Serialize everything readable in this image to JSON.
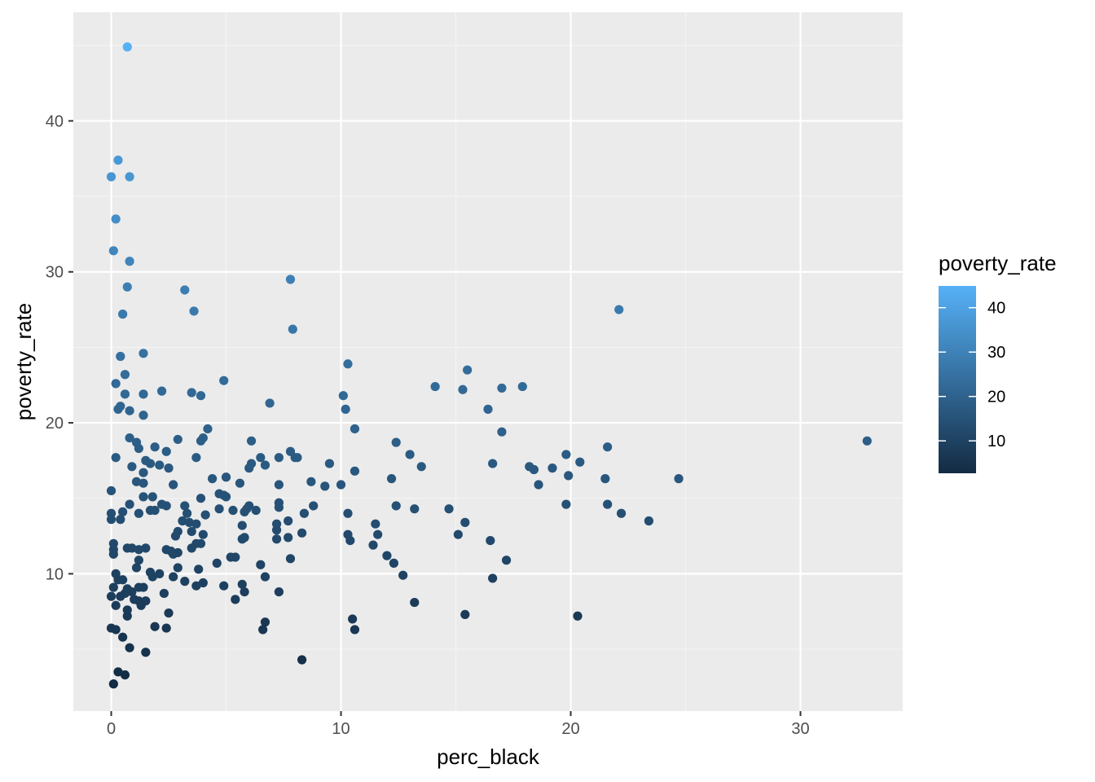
{
  "chart_data": {
    "type": "scatter",
    "xlabel": "perc_black",
    "ylabel": "poverty_rate",
    "xlim": [
      -1.65,
      34.45
    ],
    "ylim": [
      0.9,
      47.2
    ],
    "x_ticks": [
      0,
      10,
      20,
      30
    ],
    "y_ticks": [
      10,
      20,
      30,
      40
    ],
    "x_tick_labels": [
      "0",
      "10",
      "20",
      "30"
    ],
    "y_tick_labels": [
      "10",
      "20",
      "30",
      "40"
    ],
    "grid": true,
    "legend": {
      "title": "poverty_rate",
      "position": "right",
      "color_scale": {
        "low": "#132b43",
        "high": "#56b1f7",
        "min": 2.7,
        "max": 44.9
      },
      "ticks": [
        10,
        20,
        30,
        40
      ],
      "tick_labels": [
        "10",
        "20",
        "30",
        "40"
      ]
    },
    "colors": {
      "panel": "#ebebeb",
      "grid_major": "#ffffff",
      "grid_minor": "#f4f4f4"
    },
    "points": [
      [
        0.7,
        44.9
      ],
      [
        0.3,
        37.4
      ],
      [
        0.0,
        36.3
      ],
      [
        0.8,
        36.3
      ],
      [
        0.2,
        33.5
      ],
      [
        0.1,
        31.4
      ],
      [
        0.8,
        30.7
      ],
      [
        0.7,
        29.0
      ],
      [
        0.5,
        27.2
      ],
      [
        0.4,
        24.4
      ],
      [
        0.6,
        23.2
      ],
      [
        0.2,
        22.6
      ],
      [
        0.6,
        21.9
      ],
      [
        0.4,
        21.1
      ],
      [
        0.3,
        20.9
      ],
      [
        0.8,
        20.8
      ],
      [
        1.4,
        24.6
      ],
      [
        1.4,
        21.9
      ],
      [
        1.4,
        20.5
      ],
      [
        0.8,
        19.0
      ],
      [
        1.1,
        18.7
      ],
      [
        1.2,
        18.3
      ],
      [
        0.2,
        17.7
      ],
      [
        0.9,
        17.1
      ],
      [
        1.5,
        17.5
      ],
      [
        1.7,
        17.3
      ],
      [
        1.4,
        16.7
      ],
      [
        1.1,
        16.1
      ],
      [
        1.4,
        16.0
      ],
      [
        0.0,
        15.5
      ],
      [
        0.8,
        14.6
      ],
      [
        1.4,
        15.1
      ],
      [
        1.8,
        15.1
      ],
      [
        1.7,
        14.2
      ],
      [
        1.9,
        14.2
      ],
      [
        1.2,
        14.0
      ],
      [
        0.0,
        14.0
      ],
      [
        0.5,
        14.1
      ],
      [
        0.0,
        13.6
      ],
      [
        0.4,
        13.6
      ],
      [
        0.1,
        12.0
      ],
      [
        0.1,
        11.6
      ],
      [
        0.1,
        11.3
      ],
      [
        0.7,
        11.7
      ],
      [
        0.9,
        11.7
      ],
      [
        1.2,
        11.6
      ],
      [
        1.5,
        11.7
      ],
      [
        1.2,
        10.9
      ],
      [
        1.1,
        10.4
      ],
      [
        1.7,
        10.1
      ],
      [
        0.2,
        10.0
      ],
      [
        0.3,
        9.6
      ],
      [
        0.1,
        9.1
      ],
      [
        0.5,
        9.6
      ],
      [
        1.2,
        9.1
      ],
      [
        1.4,
        9.1
      ],
      [
        0.7,
        9.0
      ],
      [
        0.9,
        8.8
      ],
      [
        0.6,
        8.7
      ],
      [
        0.0,
        8.5
      ],
      [
        0.4,
        8.5
      ],
      [
        1.0,
        8.3
      ],
      [
        1.2,
        8.2
      ],
      [
        1.5,
        8.2
      ],
      [
        1.3,
        7.9
      ],
      [
        0.2,
        7.9
      ],
      [
        0.7,
        7.6
      ],
      [
        0.7,
        7.2
      ],
      [
        0.0,
        6.4
      ],
      [
        0.2,
        6.3
      ],
      [
        0.5,
        5.8
      ],
      [
        0.8,
        5.1
      ],
      [
        1.5,
        4.8
      ],
      [
        0.3,
        3.5
      ],
      [
        0.6,
        3.3
      ],
      [
        0.1,
        2.7
      ],
      [
        3.2,
        28.8
      ],
      [
        3.6,
        27.4
      ],
      [
        3.5,
        22.0
      ],
      [
        3.9,
        21.8
      ],
      [
        2.2,
        22.1
      ],
      [
        4.9,
        22.8
      ],
      [
        4.2,
        19.6
      ],
      [
        4.0,
        19.0
      ],
      [
        3.9,
        18.8
      ],
      [
        2.9,
        18.9
      ],
      [
        2.4,
        18.1
      ],
      [
        1.9,
        18.4
      ],
      [
        2.1,
        17.2
      ],
      [
        2.5,
        17.0
      ],
      [
        3.7,
        17.7
      ],
      [
        4.4,
        16.3
      ],
      [
        2.7,
        15.9
      ],
      [
        4.7,
        15.3
      ],
      [
        4.9,
        15.2
      ],
      [
        3.9,
        15.0
      ],
      [
        2.2,
        14.6
      ],
      [
        2.4,
        14.5
      ],
      [
        3.2,
        14.5
      ],
      [
        3.3,
        14.0
      ],
      [
        4.7,
        14.3
      ],
      [
        4.1,
        13.9
      ],
      [
        3.1,
        13.5
      ],
      [
        3.4,
        13.4
      ],
      [
        3.7,
        13.3
      ],
      [
        3.5,
        12.8
      ],
      [
        2.9,
        12.8
      ],
      [
        2.8,
        12.5
      ],
      [
        4.0,
        12.6
      ],
      [
        3.7,
        12.0
      ],
      [
        3.9,
        12.0
      ],
      [
        3.5,
        11.7
      ],
      [
        2.4,
        11.6
      ],
      [
        2.6,
        11.5
      ],
      [
        2.9,
        11.4
      ],
      [
        2.7,
        11.3
      ],
      [
        3.8,
        10.3
      ],
      [
        2.9,
        10.4
      ],
      [
        2.1,
        10.0
      ],
      [
        1.8,
        9.8
      ],
      [
        2.7,
        9.8
      ],
      [
        3.2,
        9.5
      ],
      [
        3.7,
        9.2
      ],
      [
        4.0,
        9.4
      ],
      [
        2.3,
        8.7
      ],
      [
        2.5,
        7.4
      ],
      [
        1.9,
        6.5
      ],
      [
        2.4,
        6.4
      ],
      [
        4.6,
        10.7
      ],
      [
        4.9,
        9.2
      ],
      [
        5.4,
        11.1
      ],
      [
        5.2,
        11.1
      ],
      [
        5.0,
        16.4
      ],
      [
        5.6,
        16.0
      ],
      [
        5.0,
        15.1
      ],
      [
        5.3,
        14.2
      ],
      [
        5.8,
        14.1
      ],
      [
        5.9,
        14.3
      ],
      [
        6.0,
        14.5
      ],
      [
        6.3,
        14.2
      ],
      [
        5.7,
        13.2
      ],
      [
        5.7,
        12.3
      ],
      [
        5.8,
        12.4
      ],
      [
        6.1,
        18.8
      ],
      [
        6.0,
        17.0
      ],
      [
        6.1,
        17.3
      ],
      [
        6.5,
        17.7
      ],
      [
        6.7,
        17.2
      ],
      [
        6.9,
        21.3
      ],
      [
        7.8,
        29.5
      ],
      [
        7.9,
        26.2
      ],
      [
        7.3,
        17.7
      ],
      [
        7.8,
        18.1
      ],
      [
        8.0,
        17.7
      ],
      [
        8.1,
        17.7
      ],
      [
        7.3,
        15.9
      ],
      [
        7.3,
        14.7
      ],
      [
        7.3,
        14.4
      ],
      [
        7.7,
        13.5
      ],
      [
        7.2,
        13.3
      ],
      [
        7.2,
        12.9
      ],
      [
        7.2,
        12.3
      ],
      [
        7.7,
        12.4
      ],
      [
        8.4,
        14.0
      ],
      [
        8.3,
        12.7
      ],
      [
        7.8,
        11.0
      ],
      [
        6.5,
        10.6
      ],
      [
        6.7,
        9.8
      ],
      [
        5.7,
        9.3
      ],
      [
        5.8,
        8.8
      ],
      [
        5.4,
        8.3
      ],
      [
        7.3,
        8.8
      ],
      [
        6.7,
        6.8
      ],
      [
        6.6,
        6.3
      ],
      [
        8.3,
        4.3
      ],
      [
        8.7,
        16.1
      ],
      [
        8.8,
        14.5
      ],
      [
        9.3,
        15.8
      ],
      [
        9.5,
        17.3
      ],
      [
        10.0,
        15.9
      ],
      [
        10.3,
        23.9
      ],
      [
        10.1,
        21.8
      ],
      [
        10.2,
        20.9
      ],
      [
        10.6,
        19.6
      ],
      [
        10.6,
        16.8
      ],
      [
        10.3,
        14.0
      ],
      [
        10.3,
        12.6
      ],
      [
        10.4,
        12.2
      ],
      [
        10.5,
        7.0
      ],
      [
        10.6,
        6.3
      ],
      [
        11.4,
        11.9
      ],
      [
        11.5,
        13.3
      ],
      [
        11.6,
        12.6
      ],
      [
        12.0,
        11.2
      ],
      [
        12.2,
        16.3
      ],
      [
        12.4,
        18.7
      ],
      [
        12.4,
        14.5
      ],
      [
        12.3,
        10.7
      ],
      [
        12.7,
        9.9
      ],
      [
        13.0,
        17.9
      ],
      [
        13.2,
        14.3
      ],
      [
        13.2,
        8.1
      ],
      [
        13.5,
        17.1
      ],
      [
        14.1,
        22.4
      ],
      [
        14.7,
        14.3
      ],
      [
        15.1,
        12.6
      ],
      [
        15.3,
        22.2
      ],
      [
        15.4,
        13.4
      ],
      [
        15.5,
        23.5
      ],
      [
        15.4,
        7.3
      ],
      [
        16.4,
        20.9
      ],
      [
        16.6,
        17.3
      ],
      [
        16.5,
        12.2
      ],
      [
        16.6,
        9.7
      ],
      [
        17.0,
        22.3
      ],
      [
        17.0,
        19.4
      ],
      [
        17.2,
        10.9
      ],
      [
        17.9,
        22.4
      ],
      [
        18.2,
        17.1
      ],
      [
        18.4,
        16.9
      ],
      [
        18.6,
        15.9
      ],
      [
        19.2,
        17.0
      ],
      [
        19.8,
        17.9
      ],
      [
        19.9,
        16.5
      ],
      [
        19.8,
        14.6
      ],
      [
        20.4,
        17.4
      ],
      [
        20.3,
        7.2
      ],
      [
        21.5,
        16.3
      ],
      [
        21.6,
        18.4
      ],
      [
        21.6,
        14.6
      ],
      [
        22.1,
        27.5
      ],
      [
        22.2,
        14.0
      ],
      [
        23.4,
        13.5
      ],
      [
        24.7,
        16.3
      ],
      [
        32.9,
        18.8
      ]
    ]
  }
}
